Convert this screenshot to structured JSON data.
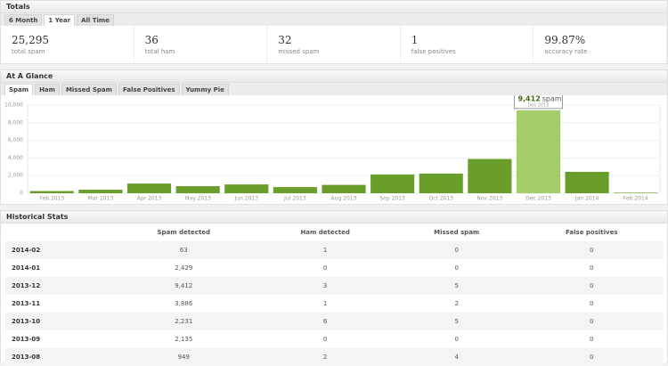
{
  "totals": {
    "title": "Totals",
    "tabs": [
      "6 Month",
      "1 Year",
      "All Time"
    ],
    "active_tab": "1 Year",
    "stats": [
      {
        "value": "25,295",
        "label": "total spam"
      },
      {
        "value": "36",
        "label": "total ham"
      },
      {
        "value": "32",
        "label": "missed spam"
      },
      {
        "value": "1",
        "label": "false positives"
      },
      {
        "value": "99.87%",
        "label": "accuracy rate"
      }
    ]
  },
  "glance": {
    "title": "At A Glance",
    "tabs": [
      "Spam",
      "Ham",
      "Missed Spam",
      "False Positives",
      "Yummy Pie"
    ],
    "active_tab": "Spam"
  },
  "chart_data": {
    "type": "bar",
    "categories": [
      "Feb 2013",
      "Mar 2013",
      "Apr 2013",
      "May 2013",
      "Jun 2013",
      "Jul 2013",
      "Aug 2013",
      "Sep 2013",
      "Oct 2013",
      "Nov 2013",
      "Dec 2013",
      "Jan 2014",
      "Feb 2014"
    ],
    "values": [
      250,
      400,
      1100,
      800,
      1000,
      700,
      949,
      2135,
      2231,
      3886,
      9412,
      2429,
      63
    ],
    "color": "#6a9e2a",
    "highlight_color": "#a4cc68",
    "ylim": [
      0,
      10000
    ],
    "yticks": [
      0,
      {
        "value": 2000,
        "label": "2,000"
      },
      {
        "value": 4000,
        "label": "4,000"
      },
      {
        "value": 6000,
        "label": "6,000"
      },
      {
        "value": 8000,
        "label": "8,000"
      },
      {
        "value": 10000,
        "label": "10,000"
      }
    ],
    "grid": true,
    "tooltip": {
      "label": "9,412",
      "unit": "spam",
      "category": "Dec 2013"
    }
  },
  "historical": {
    "title": "Historical Stats",
    "columns": [
      "Spam detected",
      "Ham detected",
      "Missed spam",
      "False positives"
    ],
    "rows": [
      [
        "2014-02",
        "63",
        "1",
        "0",
        "0"
      ],
      [
        "2014-01",
        "2,429",
        "0",
        "0",
        "0"
      ],
      [
        "2013-12",
        "9,412",
        "3",
        "5",
        "0"
      ],
      [
        "2013-11",
        "3,886",
        "1",
        "2",
        "0"
      ],
      [
        "2013-10",
        "2,231",
        "6",
        "5",
        "0"
      ],
      [
        "2013-09",
        "2,135",
        "0",
        "0",
        "0"
      ],
      [
        "2013-08",
        "949",
        "2",
        "4",
        "0"
      ]
    ]
  }
}
